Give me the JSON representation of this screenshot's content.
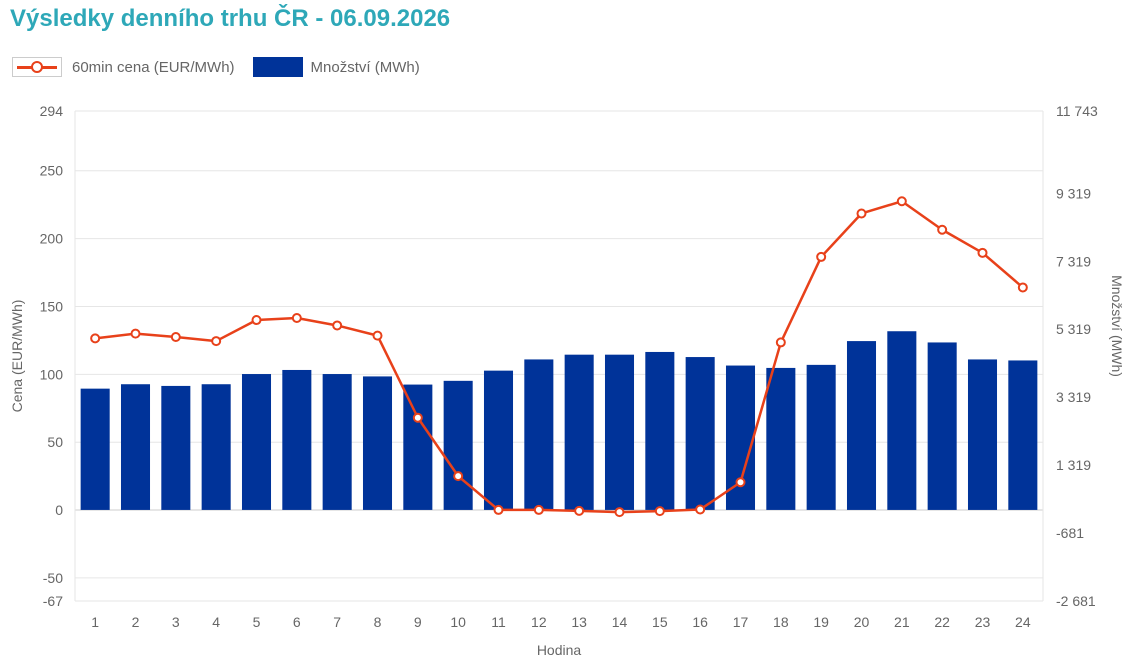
{
  "title": "Výsledky denního trhu ČR - 06.09.2026",
  "colors": {
    "title": "#2ea8b8",
    "price": "#e8411a",
    "volume": "#003399",
    "grid": "#e6e6e6",
    "text": "#666666"
  },
  "legend": {
    "price_label": "60min cena (EUR/MWh)",
    "volume_label": "Množství (MWh)"
  },
  "chart_data": {
    "type": "bar+line",
    "categories": [
      "1",
      "2",
      "3",
      "4",
      "5",
      "6",
      "7",
      "8",
      "9",
      "10",
      "11",
      "12",
      "13",
      "14",
      "15",
      "16",
      "17",
      "18",
      "19",
      "20",
      "21",
      "22",
      "23",
      "24"
    ],
    "series": [
      {
        "name": "Množství (MWh)",
        "type": "bar",
        "axis": "right",
        "values": [
          3570,
          3700,
          3650,
          3700,
          4000,
          4120,
          4000,
          3930,
          3690,
          3800,
          4100,
          4430,
          4570,
          4570,
          4650,
          4500,
          4250,
          4180,
          4270,
          4970,
          5260,
          4930,
          4430,
          4400
        ]
      },
      {
        "name": "60min cena (EUR/MWh)",
        "type": "line",
        "axis": "left",
        "values": [
          126.5,
          130.0,
          127.5,
          124.5,
          140.0,
          141.5,
          136.0,
          128.5,
          68.0,
          25.0,
          0.1,
          0.1,
          -0.6,
          -1.5,
          -0.8,
          0.4,
          20.5,
          123.5,
          186.5,
          218.5,
          227.5,
          206.5,
          189.5,
          164.0
        ]
      }
    ],
    "y_left": {
      "label": "Cena (EUR/MWh)",
      "ticks": [
        "294",
        "250",
        "200",
        "150",
        "100",
        "50",
        "0",
        "-50",
        "-67"
      ],
      "range": [
        -67,
        294
      ]
    },
    "y_right": {
      "label": "Množství (MWh)",
      "ticks": [
        "11 743",
        "9 319",
        "7 319",
        "5 319",
        "3 319",
        "1 319",
        "-681",
        "-2 681"
      ],
      "range": [
        -2681,
        11743
      ]
    },
    "xlabel": "Hodina",
    "grid": true,
    "legend_position": "top-left"
  }
}
